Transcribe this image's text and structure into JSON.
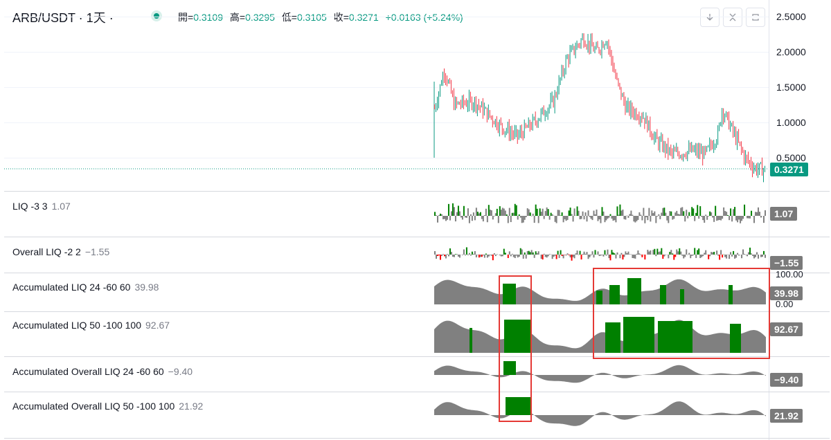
{
  "header": {
    "symbol_title": "ARB/USDT · 1天 ·",
    "ohlc": {
      "open_label": "開=",
      "open": "0.3109",
      "high_label": "高=",
      "high": "0.3295",
      "low_label": "低=",
      "low": "0.3105",
      "close_label": "收=",
      "close": "0.3271",
      "change": "+0.0163 (+5.24%)"
    },
    "tools": [
      "arrow-down-icon",
      "collapse-icon",
      "refresh-icon"
    ]
  },
  "price_axis": {
    "ticks": [
      "2.5000",
      "2.0000",
      "1.5000",
      "1.0000",
      "0.5000"
    ],
    "last_price": "0.3271"
  },
  "indicators": [
    {
      "name": "LIQ -3 3",
      "value": "1.07"
    },
    {
      "name": "Overall LIQ -2 2",
      "value": "−1.55"
    },
    {
      "name": "Accumulated LIQ 24 -60 60",
      "value": "39.98",
      "axis_top": "100.00",
      "axis_bottom": "0.00"
    },
    {
      "name": "Accumulated LIQ 50 -100 100",
      "value": "92.67"
    },
    {
      "name": "Accumulated Overall LIQ 24 -60 60",
      "value": "−9.40"
    },
    {
      "name": "Accumulated Overall LIQ 50 -100 100",
      "value": "21.92"
    }
  ],
  "badges": {
    "liq": "1.07",
    "overall_liq": "−1.55",
    "acc_liq_24": "39.98",
    "acc_liq_50": "92.67",
    "acc_overall_24": "−9.40",
    "acc_overall_50": "21.92"
  },
  "colors": {
    "up": "#089981",
    "down": "#f23645",
    "indicator_green": "#008000",
    "indicator_gray": "#808080",
    "indicator_red": "#ff0000",
    "highlight_box": "#e53935"
  }
}
